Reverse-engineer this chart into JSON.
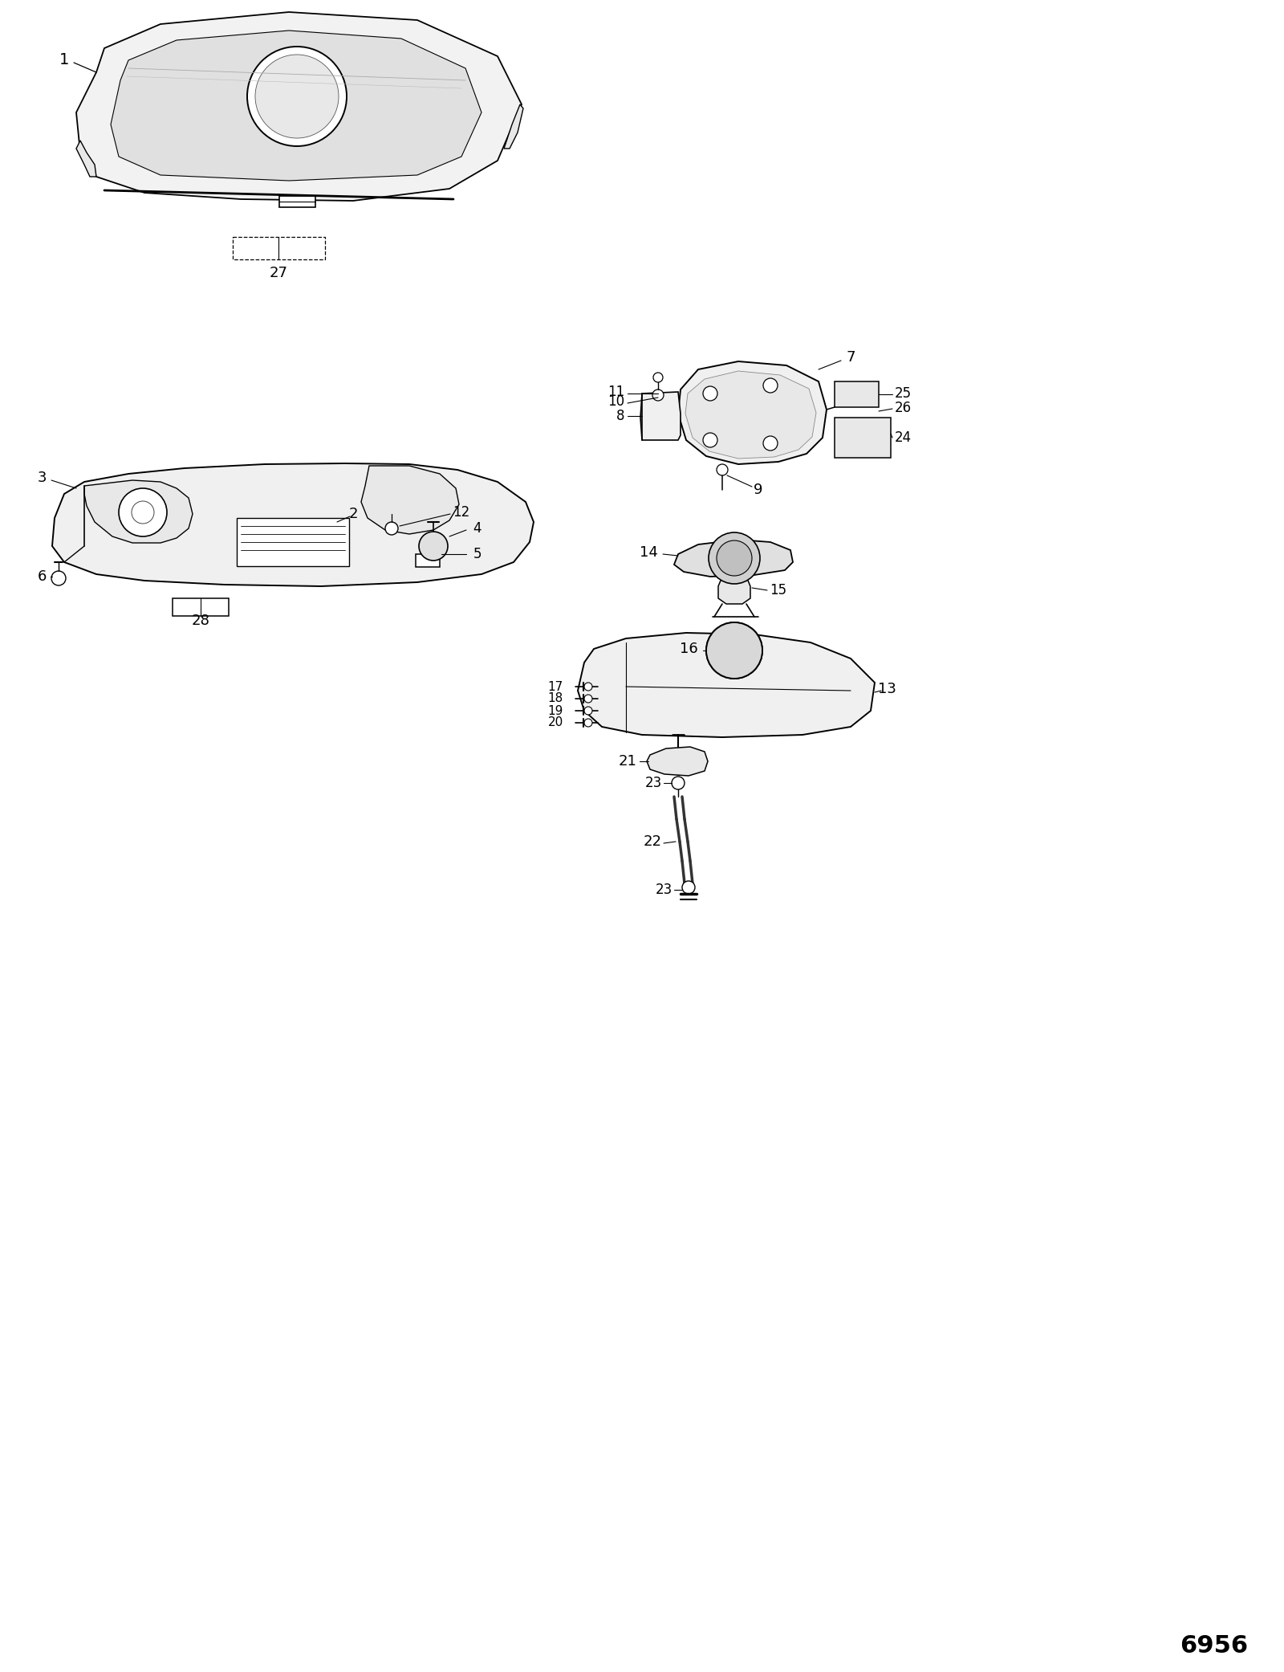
{
  "bg_color": "#ffffff",
  "line_color": "#000000",
  "fig_width": 16.0,
  "fig_height": 20.82,
  "dpi": 100,
  "diagram_number": "6956",
  "fill_color": "#f0f0f0",
  "fill_white": "#ffffff"
}
